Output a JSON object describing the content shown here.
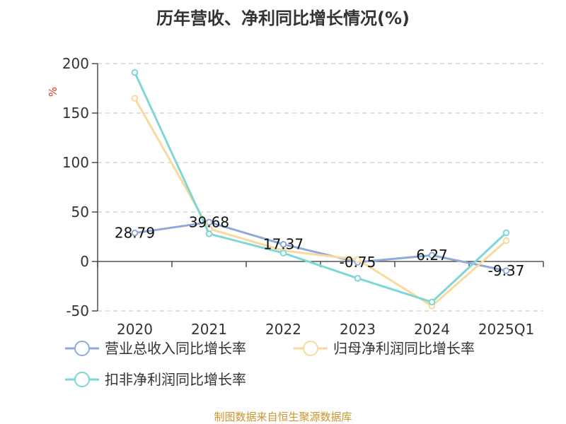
{
  "title": "历年营收、净利同比增长情况(%)",
  "source": "制图数据来自恒生聚源数据库",
  "chart_data": {
    "type": "line",
    "title": "历年营收、净利同比增长情况(%)",
    "ylabel": "%",
    "xlabel": "",
    "categories": [
      "2020",
      "2021",
      "2022",
      "2023",
      "2024",
      "2025Q1"
    ],
    "ylim": [
      -50,
      200
    ],
    "yticks": [
      200,
      150,
      100,
      50,
      0,
      -50
    ],
    "grid": true,
    "legend_position": "bottom",
    "series": [
      {
        "name": "营业总收入同比增长率",
        "color": "#8eaad9",
        "values": [
          28.79,
          39.68,
          17.37,
          -0.75,
          6.27,
          -9.37
        ],
        "labels": [
          "28.79",
          "39.68",
          "17.37",
          "-0.75",
          "6.27",
          "-9.37"
        ]
      },
      {
        "name": "归母净利润同比增长率",
        "color": "#fad99c",
        "values": [
          165,
          33,
          11,
          2,
          -45,
          21
        ]
      },
      {
        "name": "扣非净利润同比增长率",
        "color": "#7fd6d6",
        "values": [
          191,
          28,
          8.5,
          -17,
          -41,
          29
        ]
      }
    ]
  }
}
